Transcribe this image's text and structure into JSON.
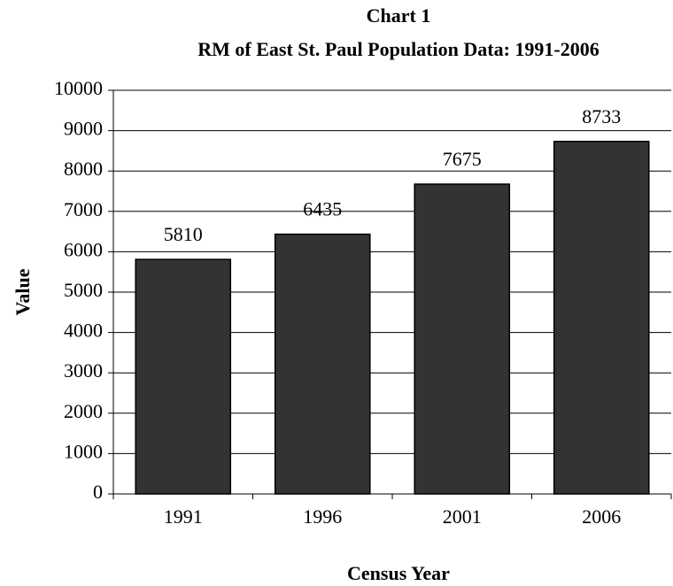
{
  "chart_data": {
    "type": "bar",
    "title": "Chart 1",
    "subtitle": "RM of East St. Paul Population Data: 1991-2006",
    "x_label": "Census Year",
    "y_label": "Value",
    "categories": [
      "1991",
      "1996",
      "2001",
      "2006"
    ],
    "values": [
      5810,
      6435,
      7675,
      8733
    ],
    "color": "#333333",
    "ylim": [
      0,
      10000
    ],
    "yticks": [
      0,
      1000,
      2000,
      3000,
      4000,
      5000,
      6000,
      7000,
      8000,
      9000,
      10000
    ],
    "grid": true
  }
}
